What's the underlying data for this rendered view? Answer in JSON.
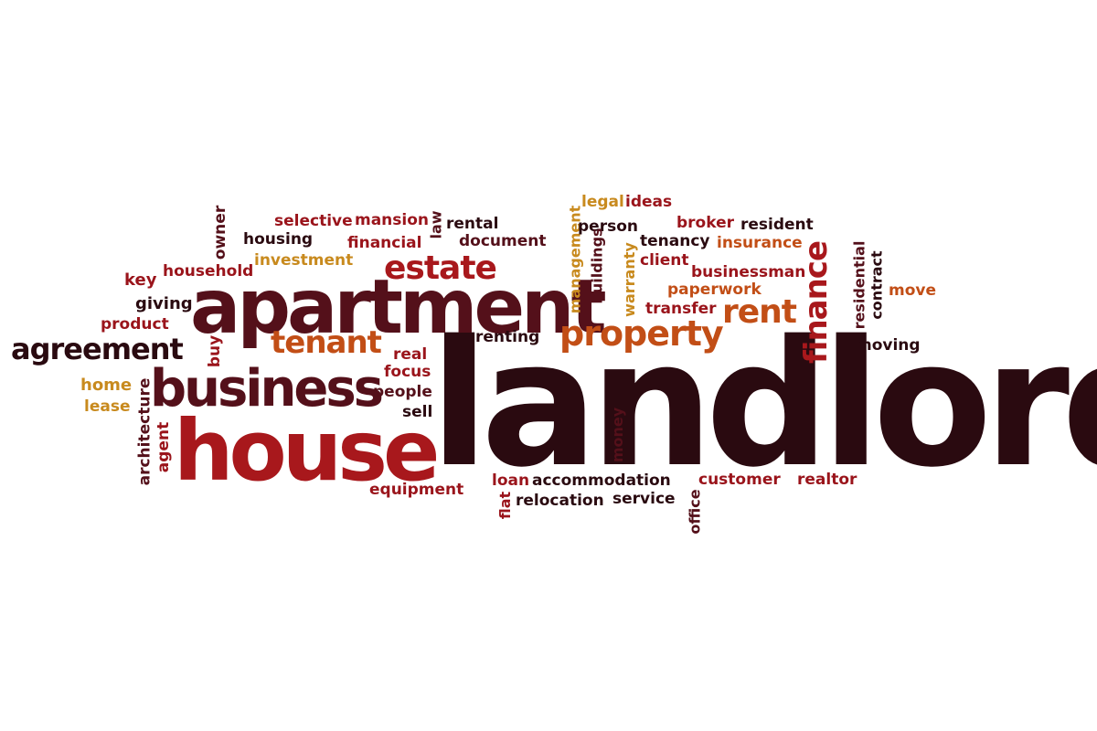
{
  "words": {
    "landlord": "landlord",
    "apartment": "apartment",
    "house": "house",
    "business": "business",
    "agreement": "agreement",
    "estate": "estate",
    "tenant": "tenant",
    "property": "property",
    "rent": "rent",
    "finance": "finance",
    "owner": "owner",
    "selective": "selective",
    "mansion": "mansion",
    "law": "law",
    "rental": "rental",
    "housing": "housing",
    "financial": "financial",
    "document": "document",
    "investment": "investment",
    "key": "key",
    "household": "household",
    "giving": "giving",
    "product": "product",
    "buy": "buy",
    "real": "real",
    "focus": "focus",
    "people": "people",
    "sell": "sell",
    "home": "home",
    "lease": "lease",
    "architecture": "architecture",
    "agent": "agent",
    "equipment": "equipment",
    "legal": "legal",
    "ideas": "ideas",
    "management": "management",
    "person": "person",
    "broker": "broker",
    "resident": "resident",
    "buildings": "buildings",
    "warranty": "warranty",
    "tenancy": "tenancy",
    "insurance": "insurance",
    "client": "client",
    "businessman": "businessman",
    "paperwork": "paperwork",
    "transfer": "transfer",
    "residential": "residential",
    "contract": "contract",
    "move": "move",
    "moving": "moving",
    "renting": "renting",
    "money": "money",
    "loan": "loan",
    "accommodation": "accommodation",
    "customer": "customer",
    "realtor": "realtor",
    "flat": "flat",
    "relocation": "relocation",
    "service": "service",
    "office": "office"
  }
}
